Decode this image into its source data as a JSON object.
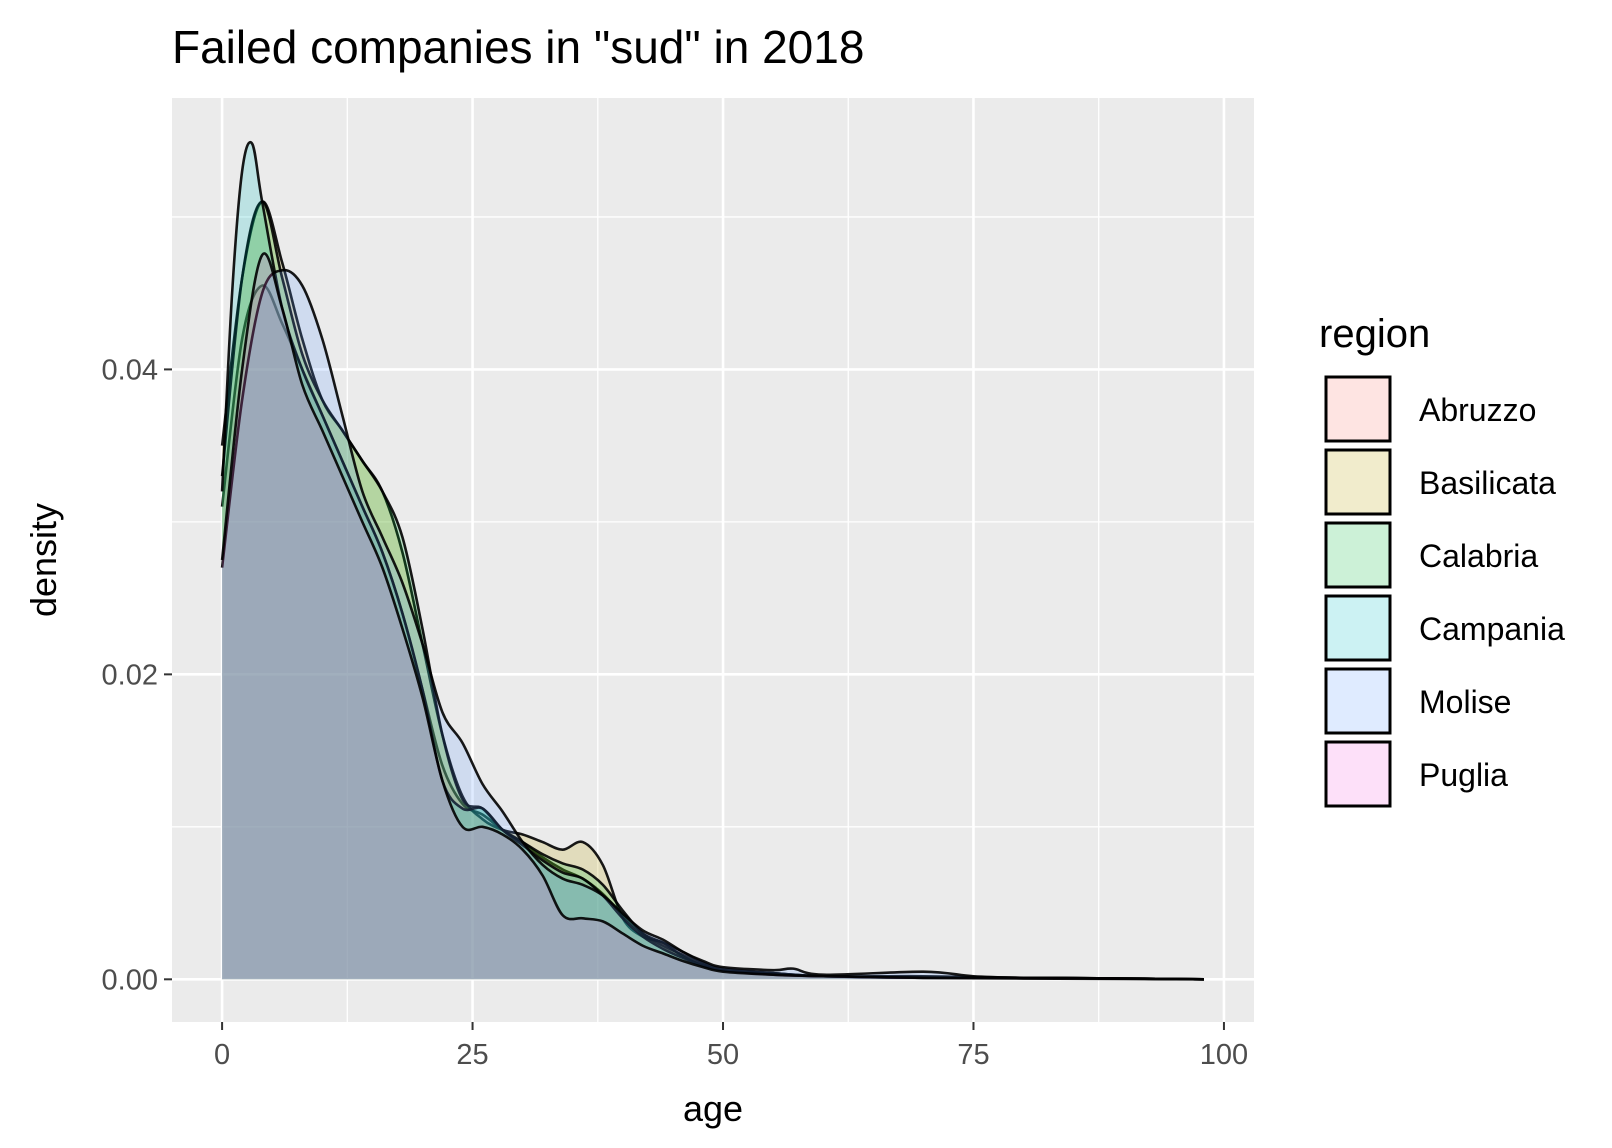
{
  "chart_data": {
    "type": "area",
    "title": "Failed companies in \"sud\" in 2018",
    "xlabel": "age",
    "ylabel": "density",
    "xlim": [
      -5,
      103
    ],
    "ylim": [
      -0.0028,
      0.0578
    ],
    "x_ticks": [
      0,
      25,
      50,
      75,
      100
    ],
    "y_ticks": [
      0.0,
      0.02,
      0.04
    ],
    "x_tick_labels": [
      "0",
      "25",
      "50",
      "75",
      "100"
    ],
    "y_tick_labels": [
      "0.00",
      "0.02",
      "0.04"
    ],
    "grid": true,
    "legend": {
      "title": "region",
      "position": "right"
    },
    "series": [
      {
        "name": "Abruzzo",
        "color": "#F8766D",
        "points": [
          [
            0,
            0.031
          ],
          [
            2,
            0.042
          ],
          [
            4,
            0.0455
          ],
          [
            6,
            0.043
          ],
          [
            8,
            0.04
          ],
          [
            10,
            0.037
          ],
          [
            12,
            0.034
          ],
          [
            14,
            0.031
          ],
          [
            16,
            0.028
          ],
          [
            18,
            0.024
          ],
          [
            20,
            0.019
          ],
          [
            22,
            0.014
          ],
          [
            24,
            0.0115
          ],
          [
            26,
            0.0108
          ],
          [
            28,
            0.0098
          ],
          [
            30,
            0.009
          ],
          [
            32,
            0.008
          ],
          [
            34,
            0.0072
          ],
          [
            36,
            0.0066
          ],
          [
            38,
            0.0056
          ],
          [
            40,
            0.0042
          ],
          [
            42,
            0.003
          ],
          [
            44,
            0.0024
          ],
          [
            46,
            0.0018
          ],
          [
            48,
            0.0011
          ],
          [
            50,
            0.0007
          ],
          [
            55,
            0.0004
          ],
          [
            60,
            0.0002
          ],
          [
            70,
            0.0002
          ],
          [
            80,
            0.0001
          ],
          [
            90,
            5e-05
          ],
          [
            98,
            0
          ]
        ]
      },
      {
        "name": "Basilicata",
        "color": "#B79F00",
        "points": [
          [
            0,
            0.035
          ],
          [
            2,
            0.046
          ],
          [
            4,
            0.051
          ],
          [
            6,
            0.047
          ],
          [
            8,
            0.042
          ],
          [
            10,
            0.038
          ],
          [
            12,
            0.036
          ],
          [
            14,
            0.034
          ],
          [
            16,
            0.032
          ],
          [
            18,
            0.028
          ],
          [
            20,
            0.022
          ],
          [
            22,
            0.016
          ],
          [
            24,
            0.012
          ],
          [
            26,
            0.0105
          ],
          [
            28,
            0.0098
          ],
          [
            30,
            0.0095
          ],
          [
            32,
            0.009
          ],
          [
            34,
            0.0085
          ],
          [
            36,
            0.009
          ],
          [
            38,
            0.0075
          ],
          [
            40,
            0.004
          ],
          [
            42,
            0.0028
          ],
          [
            44,
            0.0024
          ],
          [
            46,
            0.0015
          ],
          [
            48,
            0.0009
          ],
          [
            50,
            0.0006
          ],
          [
            55,
            0.0004
          ],
          [
            60,
            0.0002
          ],
          [
            70,
            0.0001
          ],
          [
            80,
            0.0001
          ],
          [
            90,
            5e-05
          ],
          [
            98,
            0
          ]
        ]
      },
      {
        "name": "Calabria",
        "color": "#00BA38",
        "points": [
          [
            0,
            0.033
          ],
          [
            2,
            0.046
          ],
          [
            4,
            0.051
          ],
          [
            6,
            0.046
          ],
          [
            8,
            0.041
          ],
          [
            10,
            0.038
          ],
          [
            12,
            0.036
          ],
          [
            14,
            0.034
          ],
          [
            16,
            0.032
          ],
          [
            18,
            0.029
          ],
          [
            20,
            0.023
          ],
          [
            22,
            0.016
          ],
          [
            24,
            0.0118
          ],
          [
            26,
            0.0112
          ],
          [
            28,
            0.0098
          ],
          [
            30,
            0.009
          ],
          [
            32,
            0.0082
          ],
          [
            34,
            0.0076
          ],
          [
            36,
            0.0072
          ],
          [
            38,
            0.0062
          ],
          [
            40,
            0.0045
          ],
          [
            42,
            0.003
          ],
          [
            44,
            0.0022
          ],
          [
            46,
            0.0016
          ],
          [
            48,
            0.001
          ],
          [
            50,
            0.0006
          ],
          [
            55,
            0.0004
          ],
          [
            60,
            0.0002
          ],
          [
            70,
            0.0001
          ],
          [
            80,
            0.0001
          ],
          [
            90,
            5e-05
          ],
          [
            98,
            0
          ]
        ]
      },
      {
        "name": "Campania",
        "color": "#00BFC4",
        "points": [
          [
            0,
            0.032
          ],
          [
            1,
            0.045
          ],
          [
            2,
            0.053
          ],
          [
            3,
            0.0548
          ],
          [
            4,
            0.051
          ],
          [
            6,
            0.044
          ],
          [
            8,
            0.04
          ],
          [
            10,
            0.037
          ],
          [
            12,
            0.034
          ],
          [
            14,
            0.031
          ],
          [
            16,
            0.028
          ],
          [
            18,
            0.024
          ],
          [
            20,
            0.019
          ],
          [
            22,
            0.013
          ],
          [
            24,
            0.0112
          ],
          [
            26,
            0.0112
          ],
          [
            28,
            0.0098
          ],
          [
            30,
            0.0088
          ],
          [
            32,
            0.0078
          ],
          [
            34,
            0.007
          ],
          [
            36,
            0.0066
          ],
          [
            38,
            0.0055
          ],
          [
            40,
            0.004
          ],
          [
            42,
            0.0028
          ],
          [
            44,
            0.002
          ],
          [
            46,
            0.0014
          ],
          [
            48,
            0.0009
          ],
          [
            50,
            0.0006
          ],
          [
            55,
            0.0003
          ],
          [
            60,
            0.0002
          ],
          [
            70,
            0.0001
          ],
          [
            80,
            0.0001
          ],
          [
            90,
            5e-05
          ],
          [
            98,
            0
          ]
        ]
      },
      {
        "name": "Molise",
        "color": "#619CFF",
        "points": [
          [
            0,
            0.027
          ],
          [
            2,
            0.038
          ],
          [
            4,
            0.045
          ],
          [
            6,
            0.0465
          ],
          [
            8,
            0.0455
          ],
          [
            10,
            0.042
          ],
          [
            12,
            0.037
          ],
          [
            14,
            0.032
          ],
          [
            16,
            0.029
          ],
          [
            18,
            0.026
          ],
          [
            20,
            0.022
          ],
          [
            22,
            0.0175
          ],
          [
            24,
            0.0155
          ],
          [
            26,
            0.0128
          ],
          [
            28,
            0.011
          ],
          [
            30,
            0.009
          ],
          [
            32,
            0.0075
          ],
          [
            34,
            0.0066
          ],
          [
            36,
            0.0062
          ],
          [
            38,
            0.0055
          ],
          [
            40,
            0.0043
          ],
          [
            42,
            0.0032
          ],
          [
            44,
            0.0026
          ],
          [
            46,
            0.0018
          ],
          [
            48,
            0.0012
          ],
          [
            50,
            0.0008
          ],
          [
            55,
            0.0006
          ],
          [
            57,
            0.0007
          ],
          [
            60,
            0.0003
          ],
          [
            70,
            0.0005
          ],
          [
            75,
            0.0002
          ],
          [
            80,
            0.0001
          ],
          [
            90,
            5e-05
          ],
          [
            98,
            0
          ]
        ]
      },
      {
        "name": "Puglia",
        "color": "#F564E3",
        "points": [
          [
            0,
            0.0275
          ],
          [
            2,
            0.04
          ],
          [
            4,
            0.0475
          ],
          [
            6,
            0.044
          ],
          [
            8,
            0.039
          ],
          [
            10,
            0.036
          ],
          [
            12,
            0.033
          ],
          [
            14,
            0.03
          ],
          [
            16,
            0.027
          ],
          [
            18,
            0.023
          ],
          [
            20,
            0.0185
          ],
          [
            22,
            0.013
          ],
          [
            24,
            0.01
          ],
          [
            26,
            0.01
          ],
          [
            28,
            0.0095
          ],
          [
            30,
            0.0085
          ],
          [
            32,
            0.0068
          ],
          [
            34,
            0.0042
          ],
          [
            36,
            0.004
          ],
          [
            38,
            0.0038
          ],
          [
            40,
            0.003
          ],
          [
            42,
            0.0022
          ],
          [
            44,
            0.0017
          ],
          [
            46,
            0.0012
          ],
          [
            48,
            0.0008
          ],
          [
            50,
            0.0005
          ],
          [
            55,
            0.0003
          ],
          [
            60,
            0.0002
          ],
          [
            70,
            0.0001
          ],
          [
            80,
            5e-05
          ],
          [
            90,
            2e-05
          ],
          [
            98,
            0
          ]
        ]
      }
    ]
  }
}
